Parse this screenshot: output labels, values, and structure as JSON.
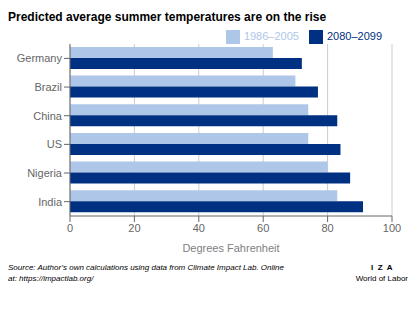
{
  "chart_data": {
    "type": "bar",
    "orientation": "horizontal",
    "title": "Predicted average summer temperatures are on the rise",
    "xlabel": "Degrees Fahrenheit",
    "categories": [
      "Germany",
      "Brazil",
      "China",
      "US",
      "Nigeria",
      "India"
    ],
    "series": [
      {
        "name": "1986–2005",
        "color": "#aec6e8",
        "values": [
          63,
          70,
          74,
          74,
          80,
          83
        ]
      },
      {
        "name": "2080–2099",
        "color": "#003082",
        "values": [
          72,
          77,
          83,
          84,
          87,
          91
        ]
      }
    ],
    "xlim": [
      0,
      100
    ],
    "xticks": [
      0,
      20,
      40,
      60,
      80,
      100
    ],
    "grid": true,
    "legend": "upper right",
    "annotations": [
      "Source: Author’s own calculations using data from Climate Impact Lab. Online",
      "at: https://impactlab.org/",
      "I  Z  A",
      "World of Labor"
    ]
  }
}
